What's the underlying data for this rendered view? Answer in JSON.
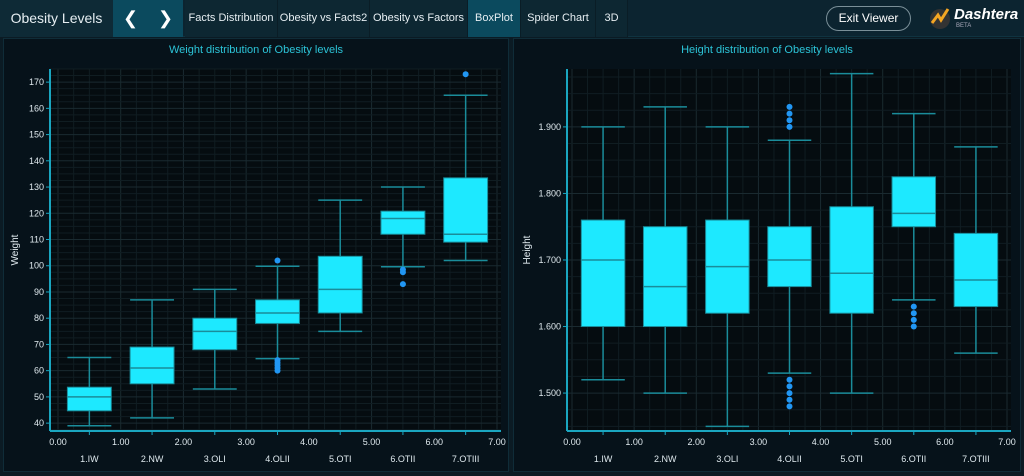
{
  "header": {
    "title": "Obesity Levels",
    "back_icon": "chevron-left-icon",
    "forward_icon": "chevron-right-icon",
    "tabs": [
      {
        "label": "Facts Distribution"
      },
      {
        "label": "Obesity vs Facts2"
      },
      {
        "label": "Obesity vs Factors"
      },
      {
        "label": "BoxPlot",
        "active": true
      },
      {
        "label": "Spider Chart"
      },
      {
        "label": "3D"
      }
    ],
    "exit_label": "Exit Viewer",
    "logo": {
      "name": "Dashtera",
      "badge": "BETA"
    }
  },
  "colors": {
    "box": "#1de9ff",
    "whisker": "#1a8c9a",
    "outlier": "#2196f3",
    "title": "#2cc4d8",
    "axis": "#1aa6c0"
  },
  "chart_data": [
    {
      "type": "box",
      "title": "Weight distribution of Obesity levels",
      "ylabel": "Weight",
      "xlim": [
        0,
        7
      ],
      "ylim": [
        37,
        175
      ],
      "x_ticks": [
        "0.00",
        "1.00",
        "2.00",
        "3.00",
        "4.00",
        "5.00",
        "6.00",
        "7.00"
      ],
      "y_ticks": [
        "40",
        "50",
        "60",
        "70",
        "80",
        "90",
        "100",
        "110",
        "120",
        "130",
        "140",
        "150",
        "160",
        "170"
      ],
      "categories": [
        "1.IW",
        "2.NW",
        "3.OLI",
        "4.OLII",
        "5.OTI",
        "6.OTII",
        "7.OTIII"
      ],
      "boxes": [
        {
          "min": 39,
          "q1": 44.7,
          "median": 50,
          "q3": 53.7,
          "max": 65,
          "outliers": []
        },
        {
          "min": 42,
          "q1": 55,
          "median": 61,
          "q3": 69,
          "max": 87,
          "outliers": []
        },
        {
          "min": 53,
          "q1": 68,
          "median": 75,
          "q3": 80,
          "max": 91,
          "outliers": []
        },
        {
          "min": 64.6,
          "q1": 78,
          "median": 82,
          "q3": 87,
          "max": 99.8,
          "outliers": [
            102,
            60,
            61,
            62,
            63,
            64
          ]
        },
        {
          "min": 75,
          "q1": 82,
          "median": 91,
          "q3": 103.6,
          "max": 125,
          "outliers": []
        },
        {
          "min": 99.6,
          "q1": 112,
          "median": 118,
          "q3": 120.8,
          "max": 130,
          "outliers": [
            97.5,
            98.5,
            93
          ]
        },
        {
          "min": 102,
          "q1": 109,
          "median": 112,
          "q3": 133.5,
          "max": 165,
          "outliers": [
            173
          ]
        }
      ]
    },
    {
      "type": "box",
      "title": "Height distribution of Obesity levels",
      "ylabel": "Height",
      "xlim": [
        0,
        7
      ],
      "ylim": [
        1.443,
        1.987
      ],
      "x_ticks": [
        "0.00",
        "1.00",
        "2.00",
        "3.00",
        "4.00",
        "5.00",
        "6.00",
        "7.00"
      ],
      "y_ticks": [
        "1.500",
        "1.600",
        "1.700",
        "1.800",
        "1.900"
      ],
      "categories": [
        "1.IW",
        "2.NW",
        "3.OLI",
        "4.OLII",
        "5.OTI",
        "6.OTII",
        "7.OTIII"
      ],
      "boxes": [
        {
          "min": 1.52,
          "q1": 1.6,
          "median": 1.7,
          "q3": 1.76,
          "max": 1.9,
          "outliers": []
        },
        {
          "min": 1.5,
          "q1": 1.6,
          "median": 1.66,
          "q3": 1.75,
          "max": 1.93,
          "outliers": []
        },
        {
          "min": 1.45,
          "q1": 1.62,
          "median": 1.69,
          "q3": 1.76,
          "max": 1.9,
          "outliers": []
        },
        {
          "min": 1.53,
          "q1": 1.66,
          "median": 1.7,
          "q3": 1.75,
          "max": 1.88,
          "outliers": [
            1.9,
            1.91,
            1.92,
            1.93,
            1.48,
            1.49,
            1.5,
            1.51,
            1.52
          ]
        },
        {
          "min": 1.5,
          "q1": 1.62,
          "median": 1.68,
          "q3": 1.78,
          "max": 1.98,
          "outliers": []
        },
        {
          "min": 1.64,
          "q1": 1.75,
          "median": 1.77,
          "q3": 1.825,
          "max": 1.92,
          "outliers": [
            1.6,
            1.61,
            1.62,
            1.63
          ]
        },
        {
          "min": 1.56,
          "q1": 1.63,
          "median": 1.67,
          "q3": 1.74,
          "max": 1.87,
          "outliers": []
        }
      ]
    }
  ]
}
